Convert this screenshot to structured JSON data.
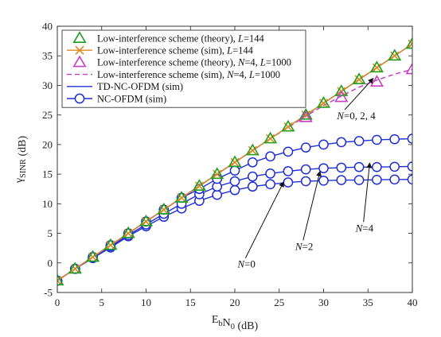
{
  "chart_data": {
    "type": "line",
    "xlabel": "E_bN_0 (dB)",
    "ylabel": "γ_SINR (dB)",
    "xlim": [
      0,
      40
    ],
    "ylim": [
      -5,
      40
    ],
    "xticks": [
      0,
      5,
      10,
      15,
      20,
      25,
      30,
      35,
      40
    ],
    "yticks": [
      -5,
      0,
      5,
      10,
      15,
      20,
      25,
      30,
      35,
      40
    ],
    "grid": false,
    "legend_position": "top-left",
    "series": [
      {
        "name": "Low-interference scheme (theory), L=144",
        "legend_parts": [
          "Low-interference scheme (theory), ",
          "L",
          "=144"
        ],
        "style": "markers",
        "marker": "triangle",
        "color": "#1f9e1f",
        "x": [
          0,
          2,
          4,
          6,
          8,
          10,
          12,
          14,
          16,
          18,
          20,
          22,
          24,
          26,
          28,
          30,
          32,
          34,
          36,
          38,
          40
        ],
        "y": [
          -3,
          -1,
          1,
          3,
          5,
          7,
          9,
          11,
          13,
          15,
          17,
          19,
          21,
          23,
          25,
          27,
          29,
          31,
          33,
          35,
          37
        ]
      },
      {
        "name": "Low-interference scheme (sim), L=144",
        "legend_parts": [
          "Low-interference scheme (sim), ",
          "L",
          "=144"
        ],
        "style": "line+markers",
        "marker": "x",
        "color": "#e08a1e",
        "x": [
          0,
          2,
          4,
          6,
          8,
          10,
          12,
          14,
          16,
          18,
          20,
          22,
          24,
          26,
          28,
          30,
          32,
          34,
          36,
          38,
          40
        ],
        "y": [
          -3,
          -1,
          1,
          3,
          5,
          7,
          9,
          11,
          13,
          15,
          17,
          19,
          21,
          23,
          25,
          27,
          29,
          31,
          33,
          35,
          37
        ]
      },
      {
        "name": "Low-interference scheme (theory), N=4, L=1000",
        "legend_parts": [
          "Low-interference scheme (theory), ",
          "N",
          "=4, ",
          "L",
          "=1000"
        ],
        "style": "markers",
        "marker": "triangle",
        "color": "#c43fc4",
        "x": [
          28,
          32,
          36,
          40
        ],
        "y": [
          24.6,
          28.0,
          30.6,
          32.7
        ]
      },
      {
        "name": "Low-interference scheme (sim), N=4, L=1000",
        "legend_parts": [
          "Low-interference scheme (sim), ",
          "N",
          "=4, ",
          "L",
          "=1000"
        ],
        "style": "dashed",
        "marker": "none",
        "color": "#c43fc4",
        "x": [
          0,
          2,
          4,
          6,
          8,
          10,
          12,
          14,
          16,
          18,
          20,
          22,
          24,
          26,
          28,
          30,
          32,
          34,
          36,
          38,
          40
        ],
        "y": [
          -3,
          -1,
          1,
          3,
          5,
          7,
          9,
          11,
          13,
          15,
          17,
          19,
          21,
          22.9,
          24.8,
          26.6,
          28.2,
          29.7,
          30.9,
          31.9,
          32.7
        ]
      },
      {
        "name": "TD-NC-OFDM (sim)",
        "legend_parts": [
          "TD-NC-OFDM (sim)"
        ],
        "style": "line",
        "marker": "none",
        "color": "#1f2fd6",
        "x": [
          0,
          2,
          4,
          6,
          8,
          10,
          12,
          14,
          16,
          18,
          20,
          22,
          24,
          26,
          28,
          30,
          32,
          34,
          36,
          38,
          40
        ],
        "y": [
          -3,
          -1,
          1,
          3,
          5,
          7,
          9,
          11,
          13,
          15,
          17,
          19,
          21,
          23,
          25,
          27,
          29,
          31,
          33,
          35,
          37
        ]
      },
      {
        "name": "NC-OFDM (sim), N=0",
        "legend_parts": [
          "NC-OFDM (sim)"
        ],
        "show_in_legend": true,
        "style": "line+markers",
        "marker": "circle",
        "color": "#1f2fd6",
        "x": [
          0,
          2,
          4,
          6,
          8,
          10,
          12,
          14,
          16,
          18,
          20,
          22,
          24,
          26,
          28,
          30,
          32,
          34,
          36,
          38,
          40
        ],
        "y": [
          -3,
          -1,
          0.8,
          2.6,
          4.5,
          6.2,
          7.8,
          9.2,
          10.5,
          11.5,
          12.3,
          12.9,
          13.3,
          13.6,
          13.8,
          13.9,
          14.0,
          14.0,
          14.05,
          14.1,
          14.1
        ]
      },
      {
        "name": "NC-OFDM (sim), N=2",
        "show_in_legend": false,
        "style": "line+markers",
        "marker": "circle",
        "color": "#1f2fd6",
        "x": [
          0,
          2,
          4,
          6,
          8,
          10,
          12,
          14,
          16,
          18,
          20,
          22,
          24,
          26,
          28,
          30,
          32,
          34,
          36,
          38,
          40
        ],
        "y": [
          -3,
          -1,
          0.9,
          2.8,
          4.7,
          6.5,
          8.3,
          10.0,
          11.6,
          12.9,
          13.8,
          14.6,
          15.1,
          15.5,
          15.8,
          16.0,
          16.1,
          16.2,
          16.2,
          16.25,
          16.3
        ]
      },
      {
        "name": "NC-OFDM (sim), N=4",
        "show_in_legend": false,
        "style": "line+markers",
        "marker": "circle",
        "color": "#1f2fd6",
        "x": [
          0,
          2,
          4,
          6,
          8,
          10,
          12,
          14,
          16,
          18,
          20,
          22,
          24,
          26,
          28,
          30,
          32,
          34,
          36,
          38,
          40
        ],
        "y": [
          -3,
          -1,
          1,
          3,
          5,
          7,
          9,
          11,
          12.5,
          14.2,
          15.6,
          17.0,
          18.0,
          18.8,
          19.5,
          20.0,
          20.4,
          20.6,
          20.8,
          20.9,
          21.0
        ]
      }
    ],
    "annotations": [
      {
        "parts": [
          "N",
          "=0, 2, 4"
        ],
        "italic_mask": [
          true,
          false
        ],
        "text_at": [
          31.5,
          24.3
        ],
        "arrow_to": [
          35.6,
          31.2
        ]
      },
      {
        "parts": [
          "N",
          "=4"
        ],
        "italic_mask": [
          true,
          false
        ],
        "text_at": [
          33.6,
          5.3
        ],
        "arrow_to": [
          35.2,
          16.9
        ]
      },
      {
        "parts": [
          "N",
          "=2"
        ],
        "italic_mask": [
          true,
          false
        ],
        "text_at": [
          26.8,
          2.2
        ],
        "arrow_to": [
          29.6,
          15.5
        ]
      },
      {
        "parts": [
          "N",
          "=0"
        ],
        "italic_mask": [
          true,
          false
        ],
        "text_at": [
          20.3,
          -0.8
        ],
        "arrow_to": [
          25.5,
          13.7
        ]
      }
    ]
  }
}
